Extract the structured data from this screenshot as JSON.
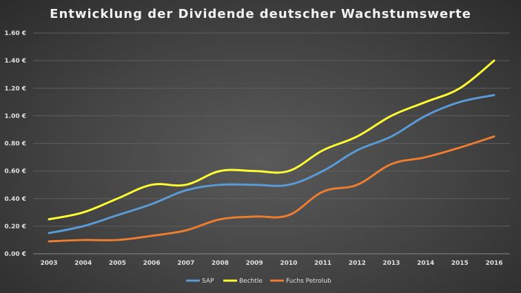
{
  "chart_data": {
    "type": "line",
    "title": "Entwicklung der Dividende deutscher Wachstumswerte",
    "xlabel": "",
    "ylabel": "",
    "categories": [
      "2003",
      "2004",
      "2005",
      "2006",
      "2007",
      "2008",
      "2009",
      "2010",
      "2011",
      "2012",
      "2013",
      "2014",
      "2015",
      "2016"
    ],
    "ylim": [
      0,
      1.6
    ],
    "yticks": [
      "0.00 €",
      "0.20 €",
      "0.40 €",
      "0.60 €",
      "0.80 €",
      "1.00 €",
      "1.20 €",
      "1.40 €",
      "1.60 €"
    ],
    "ytick_values": [
      0,
      0.2,
      0.4,
      0.6,
      0.8,
      1.0,
      1.2,
      1.4,
      1.6
    ],
    "grid": true,
    "legend_position": "bottom",
    "series": [
      {
        "name": "SAP",
        "color": "#5b9bd5",
        "values": [
          0.15,
          0.2,
          0.28,
          0.36,
          0.46,
          0.5,
          0.5,
          0.5,
          0.6,
          0.75,
          0.85,
          1.0,
          1.1,
          1.15
        ]
      },
      {
        "name": "Bechtle",
        "color": "#ffff33",
        "values": [
          0.25,
          0.3,
          0.4,
          0.5,
          0.5,
          0.6,
          0.6,
          0.6,
          0.75,
          0.85,
          1.0,
          1.1,
          1.2,
          1.4
        ]
      },
      {
        "name": "Fuchs Petrolub",
        "color": "#ed7d31",
        "values": [
          0.09,
          0.1,
          0.1,
          0.13,
          0.17,
          0.25,
          0.27,
          0.28,
          0.45,
          0.5,
          0.65,
          0.7,
          0.77,
          0.85
        ]
      }
    ]
  }
}
